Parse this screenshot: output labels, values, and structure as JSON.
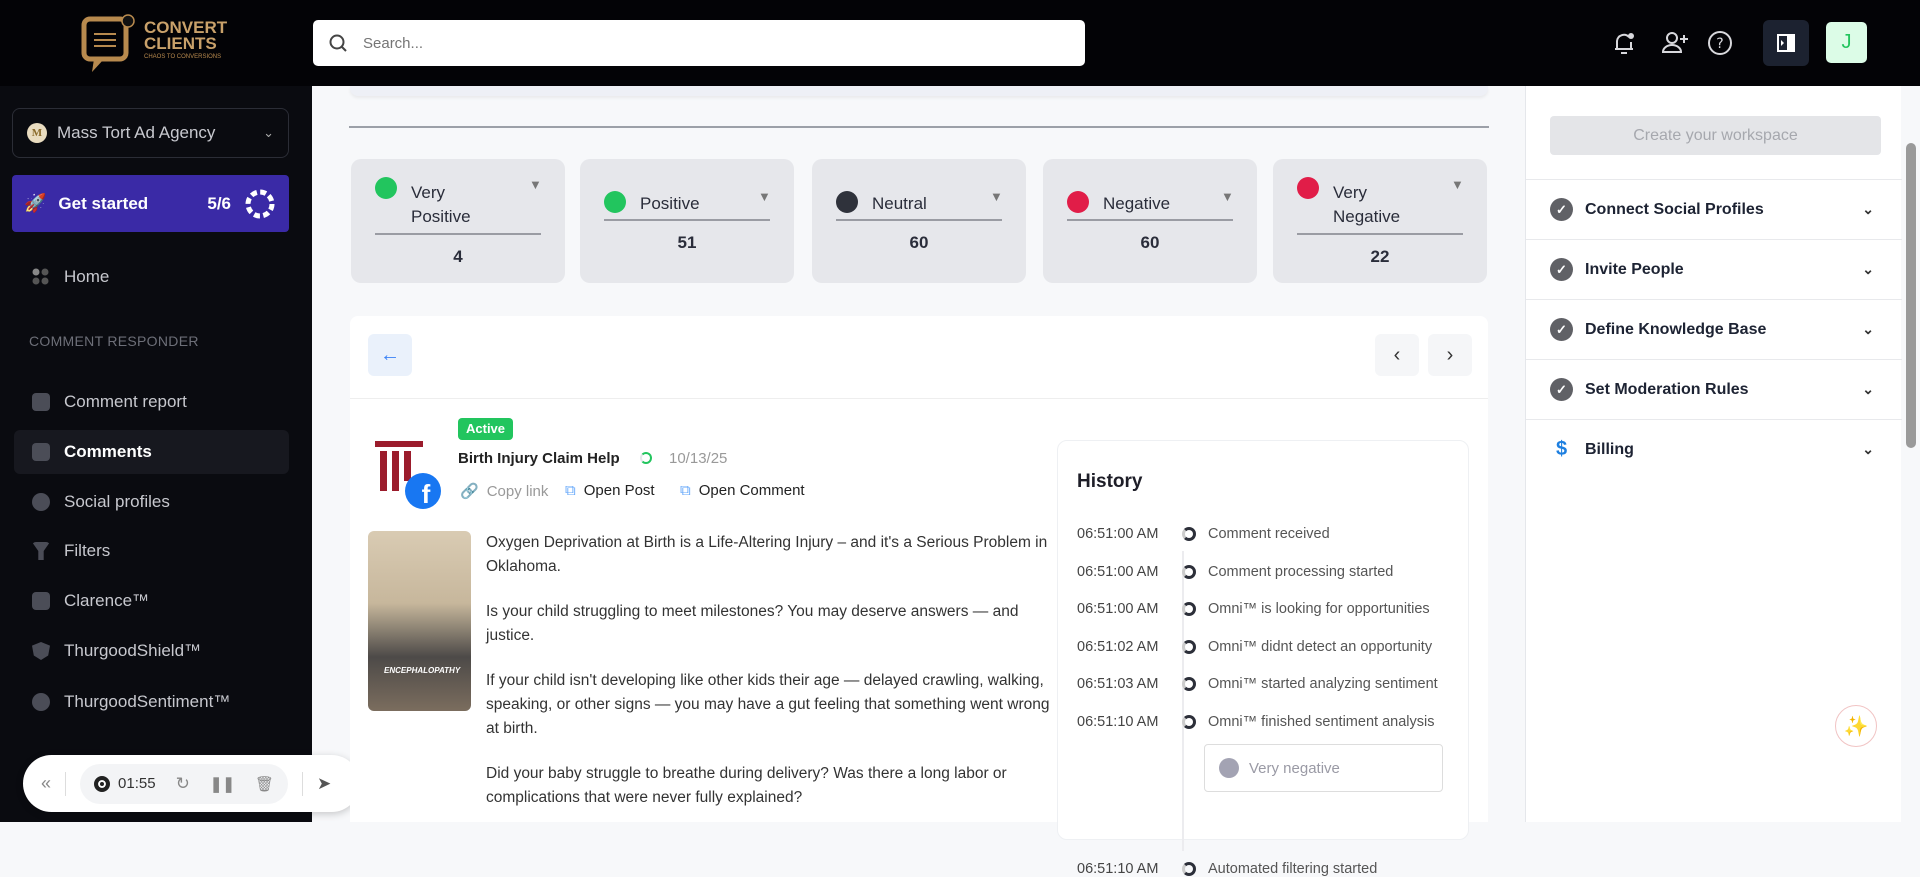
{
  "header": {
    "logo_text": "CONVERT CLIENTS",
    "logo_tagline": "CHAOS TO CONVERSIONS",
    "search_placeholder": "Search...",
    "avatar_initial": "J"
  },
  "sidebar": {
    "workspace": "Mass Tort Ad Agency",
    "get_started": "Get started",
    "progress": "5/6",
    "progress_fraction": 0.833,
    "home": "Home",
    "section": "COMMENT RESPONDER",
    "items": [
      {
        "label": "Comment report",
        "icon": "chart-icon"
      },
      {
        "label": "Comments",
        "icon": "comments-icon",
        "active": true
      },
      {
        "label": "Social profiles",
        "icon": "social-icon"
      },
      {
        "label": "Filters",
        "icon": "filter-icon"
      },
      {
        "label": "Clarence™",
        "icon": "chat-icon"
      },
      {
        "label": "ThurgoodShield™",
        "icon": "shield-icon"
      },
      {
        "label": "ThurgoodSentiment™",
        "icon": "smile-icon"
      }
    ]
  },
  "recorder": {
    "time": "01:55"
  },
  "sentiment": [
    {
      "label": "Very Positive",
      "count": "4",
      "color": "#22c55e"
    },
    {
      "label": "Positive",
      "count": "51",
      "color": "#22c55e"
    },
    {
      "label": "Neutral",
      "count": "60",
      "color": "#2f323b"
    },
    {
      "label": "Negative",
      "count": "60",
      "color": "#e11d48"
    },
    {
      "label": "Very Negative",
      "count": "22",
      "color": "#e11d48"
    }
  ],
  "post": {
    "status": "Active",
    "title": "Birth Injury Claim Help",
    "date": "10/13/25",
    "copy_link": "Copy link",
    "open_post": "Open Post",
    "open_comment": "Open Comment",
    "thumb_caption": "ENCEPHALOPATHY",
    "paragraphs": [
      "Oxygen Deprivation at Birth is a Life-Altering Injury – and it's a Serious Problem in Oklahoma.",
      "Is your child struggling to meet milestones? You may deserve answers — and justice.",
      "If your child isn't developing like other kids their age — delayed crawling, walking, speaking, or other signs — you may have a gut feeling that something went wrong at birth.",
      "Did your baby struggle to breathe during delivery? Was there a long labor or complications that were never fully explained?"
    ]
  },
  "history": {
    "title": "History",
    "events": [
      {
        "time": "06:51:00 AM",
        "text": "Comment received"
      },
      {
        "time": "06:51:00 AM",
        "text": "Comment processing started"
      },
      {
        "time": "06:51:00 AM",
        "text": "Omni™ is looking for opportunities"
      },
      {
        "time": "06:51:02 AM",
        "text": "Omni™ didnt detect an opportunity"
      },
      {
        "time": "06:51:03 AM",
        "text": "Omni™ started analyzing sentiment"
      },
      {
        "time": "06:51:10 AM",
        "text": "Omni™ finished sentiment analysis"
      },
      {
        "time": "06:51:10 AM",
        "text": "Automated filtering started"
      }
    ],
    "sentiment_result": "Very negative"
  },
  "right_panel": {
    "create_workspace": "Create your workspace",
    "steps": [
      {
        "label": "Connect Social Profiles",
        "done": true
      },
      {
        "label": "Invite People",
        "done": true
      },
      {
        "label": "Define Knowledge Base",
        "done": true
      },
      {
        "label": "Set Moderation Rules",
        "done": true
      },
      {
        "label": "Billing",
        "done": false
      }
    ]
  }
}
